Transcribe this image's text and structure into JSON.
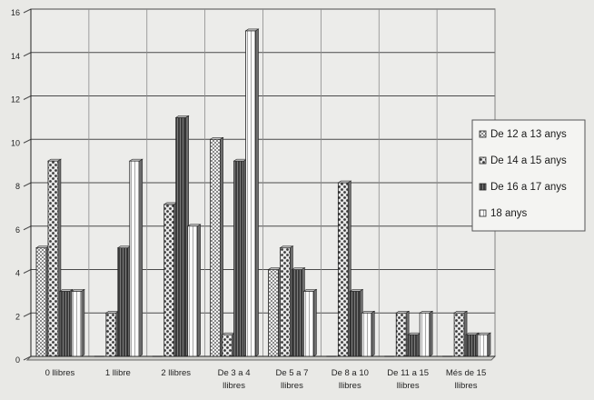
{
  "chart_data": {
    "type": "bar",
    "categories": [
      "0 llibres",
      "1 llibre",
      "2 llibres",
      "De 3 a 4 llibres",
      "De 5 a 7 llibres",
      "De 8 a 10 llibres",
      "De 11 a 15 llibres",
      "Més de 15 llibres"
    ],
    "series": [
      {
        "name": "De 12 a 13 anys",
        "values": [
          5,
          0,
          0,
          10,
          4,
          0,
          0,
          0
        ]
      },
      {
        "name": "De 14 a 15 anys",
        "values": [
          9,
          2,
          7,
          1,
          5,
          8,
          2,
          2
        ]
      },
      {
        "name": "De 16 a 17 anys",
        "values": [
          3,
          5,
          11,
          9,
          4,
          3,
          1,
          1
        ]
      },
      {
        "name": "18 anys",
        "values": [
          3,
          9,
          6,
          15,
          3,
          2,
          2,
          1
        ]
      }
    ],
    "yticks": [
      "0",
      "2",
      "4",
      "6",
      "8",
      "10",
      "12",
      "14",
      "16"
    ],
    "ylim": [
      0,
      16
    ],
    "grid": true,
    "legend": "right",
    "colors": [
      "#d8d8d8",
      "#c0c0c0",
      "#4a4a4a",
      "#f2f2f2"
    ]
  }
}
